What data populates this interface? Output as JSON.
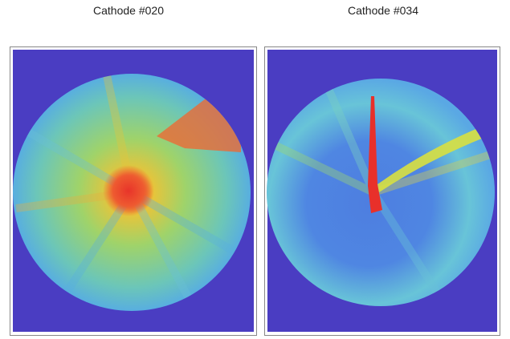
{
  "panels": [
    {
      "title": "Cathode #020"
    },
    {
      "title": "Cathode #034"
    }
  ]
}
